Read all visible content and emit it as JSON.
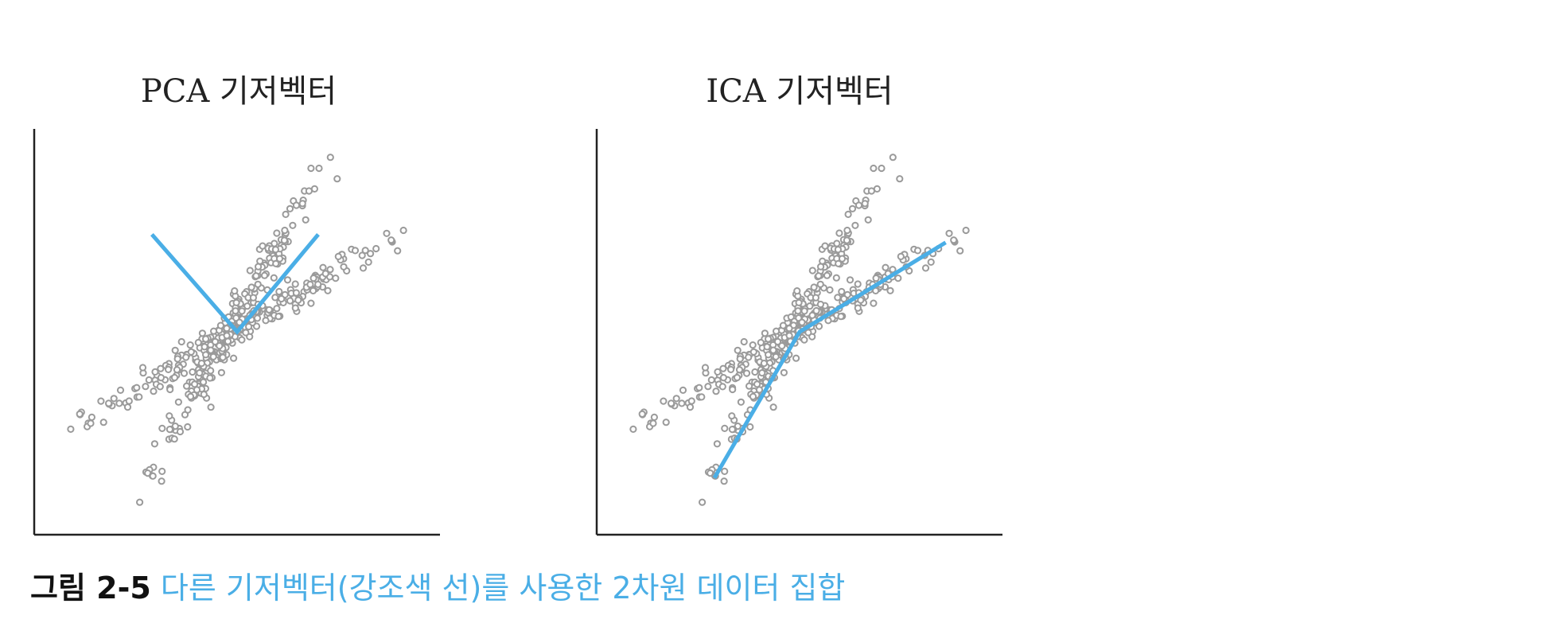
{
  "colors": {
    "points": "#9a9a9a",
    "vectors": "#4aaee6",
    "axes": "#222222",
    "caption_label": "#111111",
    "caption_text": "#4aaee6"
  },
  "chart_data": [
    {
      "type": "scatter",
      "title": "PCA 기저벡터",
      "xlabel": "",
      "ylabel": "",
      "xlim": [
        0,
        10
      ],
      "ylim": [
        0,
        10
      ],
      "grid": false,
      "clusters": [
        {
          "from": [
            0.9,
            2.6
          ],
          "to": [
            9.1,
            7.5
          ],
          "count": 230,
          "spread": 0.18
        },
        {
          "from": [
            2.6,
            1.2
          ],
          "to": [
            7.3,
            9.3
          ],
          "count": 230,
          "spread": 0.16
        }
      ],
      "outliers": [
        [
          0.9,
          2.6
        ],
        [
          2.6,
          0.8
        ],
        [
          7.3,
          9.3
        ],
        [
          9.1,
          7.5
        ]
      ],
      "basis_vectors": [
        {
          "points": [
            [
              2.9,
              7.4
            ],
            [
              5.0,
              5.0
            ],
            [
              7.0,
              7.4
            ]
          ]
        }
      ]
    },
    {
      "type": "scatter",
      "title": "ICA 기저벡터",
      "xlabel": "",
      "ylabel": "",
      "xlim": [
        0,
        10
      ],
      "ylim": [
        0,
        10
      ],
      "grid": false,
      "clusters": [
        {
          "from": [
            0.9,
            2.6
          ],
          "to": [
            9.1,
            7.5
          ],
          "count": 230,
          "spread": 0.18
        },
        {
          "from": [
            2.6,
            1.2
          ],
          "to": [
            7.3,
            9.3
          ],
          "count": 230,
          "spread": 0.16
        }
      ],
      "outliers": [
        [
          0.9,
          2.6
        ],
        [
          2.6,
          0.8
        ],
        [
          7.3,
          9.3
        ],
        [
          9.1,
          7.5
        ]
      ],
      "basis_vectors": [
        {
          "points": [
            [
              2.9,
              1.4
            ],
            [
              5.0,
              5.0
            ],
            [
              8.6,
              7.2
            ]
          ]
        }
      ]
    }
  ],
  "caption": {
    "label": "그림 2-5",
    "text": "다른 기저벡터(강조색 선)를 사용한 2차원 데이터 집합"
  }
}
